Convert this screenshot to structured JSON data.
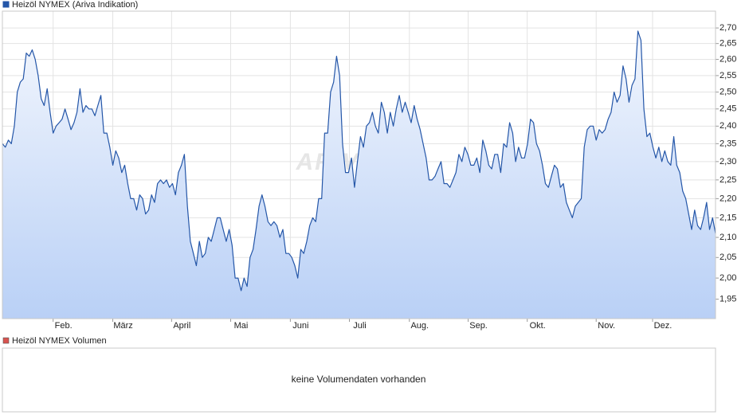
{
  "chart_data": {
    "type": "line",
    "series": [
      {
        "name": "Heizöl NYMEX (Ariva Indikation)",
        "color": "#2456a8",
        "values": [
          2.35,
          2.34,
          2.36,
          2.35,
          2.4,
          2.5,
          2.53,
          2.54,
          2.62,
          2.61,
          2.63,
          2.6,
          2.55,
          2.48,
          2.46,
          2.51,
          2.44,
          2.38,
          2.4,
          2.41,
          2.42,
          2.45,
          2.42,
          2.39,
          2.41,
          2.44,
          2.51,
          2.44,
          2.46,
          2.45,
          2.45,
          2.43,
          2.46,
          2.49,
          2.38,
          2.38,
          2.34,
          2.29,
          2.33,
          2.31,
          2.27,
          2.29,
          2.24,
          2.2,
          2.2,
          2.17,
          2.21,
          2.2,
          2.16,
          2.17,
          2.21,
          2.19,
          2.24,
          2.25,
          2.24,
          2.25,
          2.23,
          2.24,
          2.21,
          2.27,
          2.29,
          2.32,
          2.18,
          2.09,
          2.06,
          2.03,
          2.09,
          2.05,
          2.06,
          2.1,
          2.09,
          2.12,
          2.15,
          2.15,
          2.12,
          2.09,
          2.12,
          2.08,
          2.0,
          2.0,
          1.97,
          2.0,
          1.98,
          2.05,
          2.07,
          2.12,
          2.18,
          2.21,
          2.18,
          2.14,
          2.13,
          2.14,
          2.13,
          2.1,
          2.12,
          2.06,
          2.06,
          2.05,
          2.03,
          2.0,
          2.07,
          2.06,
          2.09,
          2.13,
          2.15,
          2.14,
          2.2,
          2.2,
          2.38,
          2.38,
          2.5,
          2.53,
          2.61,
          2.55,
          2.35,
          2.27,
          2.27,
          2.31,
          2.23,
          2.3,
          2.37,
          2.34,
          2.4,
          2.41,
          2.44,
          2.4,
          2.38,
          2.47,
          2.44,
          2.38,
          2.44,
          2.4,
          2.45,
          2.49,
          2.44,
          2.47,
          2.44,
          2.41,
          2.46,
          2.42,
          2.39,
          2.35,
          2.31,
          2.25,
          2.25,
          2.26,
          2.28,
          2.3,
          2.24,
          2.24,
          2.23,
          2.25,
          2.27,
          2.32,
          2.3,
          2.34,
          2.32,
          2.29,
          2.29,
          2.31,
          2.27,
          2.36,
          2.33,
          2.29,
          2.28,
          2.32,
          2.32,
          2.27,
          2.35,
          2.34,
          2.41,
          2.38,
          2.3,
          2.34,
          2.31,
          2.31,
          2.35,
          2.42,
          2.41,
          2.35,
          2.33,
          2.29,
          2.24,
          2.23,
          2.26,
          2.29,
          2.28,
          2.23,
          2.24,
          2.19,
          2.17,
          2.15,
          2.18,
          2.19,
          2.2,
          2.34,
          2.39,
          2.4,
          2.4,
          2.36,
          2.39,
          2.38,
          2.39,
          2.42,
          2.44,
          2.5,
          2.47,
          2.49,
          2.58,
          2.54,
          2.47,
          2.52,
          2.54,
          2.69,
          2.66,
          2.45,
          2.37,
          2.38,
          2.34,
          2.31,
          2.34,
          2.3,
          2.33,
          2.3,
          2.29,
          2.37,
          2.29,
          2.27,
          2.22,
          2.2,
          2.16,
          2.12,
          2.17,
          2.13,
          2.12,
          2.15,
          2.19,
          2.12,
          2.15,
          2.11
        ]
      }
    ],
    "xlim": [
      0,
      239
    ],
    "xticks": [
      {
        "value": 17,
        "label": "Feb."
      },
      {
        "value": 37,
        "label": "März"
      },
      {
        "value": 56.7,
        "label": "April"
      },
      {
        "value": 76.5,
        "label": "Mai"
      },
      {
        "value": 96.5,
        "label": "Juni"
      },
      {
        "value": 116.3,
        "label": "Juli"
      },
      {
        "value": 136.4,
        "label": "Aug."
      },
      {
        "value": 156.1,
        "label": "Sep."
      },
      {
        "value": 175.9,
        "label": "Okt."
      },
      {
        "value": 199,
        "label": "Nov."
      },
      {
        "value": 217.9,
        "label": "Dez."
      }
    ],
    "ylim": [
      1.905,
      2.755
    ],
    "yticks": [
      {
        "value": 1.95,
        "label": "1,95"
      },
      {
        "value": 2.0,
        "label": "2,00"
      },
      {
        "value": 2.05,
        "label": "2,05"
      },
      {
        "value": 2.1,
        "label": "2,10"
      },
      {
        "value": 2.15,
        "label": "2,15"
      },
      {
        "value": 2.2,
        "label": "2,20"
      },
      {
        "value": 2.25,
        "label": "2,25"
      },
      {
        "value": 2.3,
        "label": "2,30"
      },
      {
        "value": 2.35,
        "label": "2,35"
      },
      {
        "value": 2.4,
        "label": "2,40"
      },
      {
        "value": 2.45,
        "label": "2,45"
      },
      {
        "value": 2.5,
        "label": "2,50"
      },
      {
        "value": 2.55,
        "label": "2,55"
      },
      {
        "value": 2.6,
        "label": "2,60"
      },
      {
        "value": 2.65,
        "label": "2,65"
      },
      {
        "value": 2.7,
        "label": "2,70"
      }
    ],
    "log_scale": true,
    "grid": true,
    "watermark": "ARIVA.DE"
  },
  "volume_panel": {
    "legend": "Heizöl NYMEX Volumen",
    "color": "#d9534f",
    "message": "keine Volumendaten vorhanden"
  }
}
